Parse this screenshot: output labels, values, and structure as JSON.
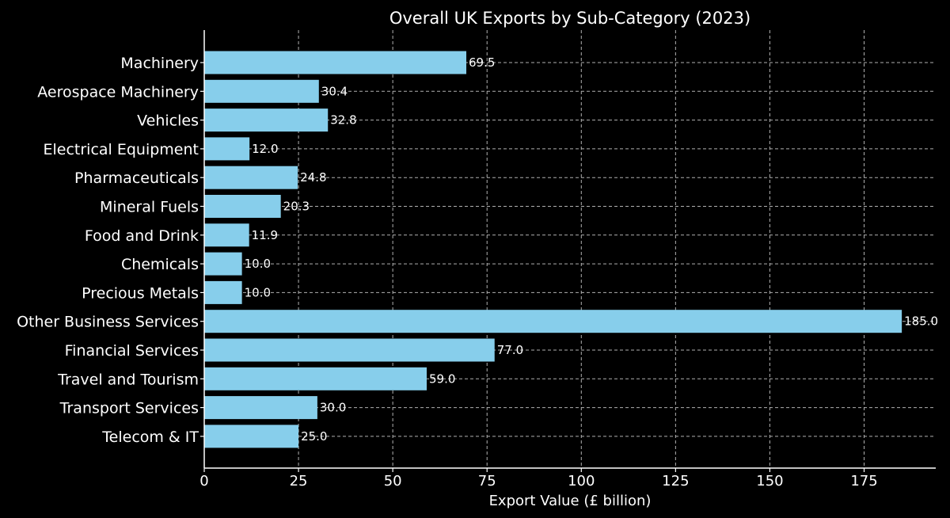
{
  "chart_data": {
    "type": "bar",
    "orientation": "horizontal",
    "title": "Overall UK Exports by Sub-Category (2023)",
    "xlabel": "Export Value (£ billion)",
    "ylabel": "",
    "xlim": [
      0,
      194
    ],
    "x_ticks": [
      0,
      25,
      50,
      75,
      100,
      125,
      150,
      175
    ],
    "grid": true,
    "categories": [
      "Machinery",
      "Aerospace Machinery",
      "Vehicles",
      "Electrical Equipment",
      "Pharmaceuticals",
      "Mineral Fuels",
      "Food and Drink",
      "Chemicals",
      "Precious Metals",
      "Other Business Services",
      "Financial Services",
      "Travel and Tourism",
      "Transport Services",
      "Telecom & IT"
    ],
    "values": [
      69.5,
      30.4,
      32.8,
      12.0,
      24.8,
      20.3,
      11.9,
      10.0,
      10.0,
      185.0,
      77.0,
      59.0,
      30.0,
      25.0
    ],
    "value_labels": [
      "69.5",
      "30.4",
      "32.8",
      "12.0",
      "24.8",
      "20.3",
      "11.9",
      "10.0",
      "10.0",
      "185.0",
      "77.0",
      "59.0",
      "30.0",
      "25.0"
    ],
    "colors": {
      "bar": "#87ceeb",
      "background": "#000000",
      "text": "#ffffff",
      "grid": "#b0b0b0"
    }
  }
}
